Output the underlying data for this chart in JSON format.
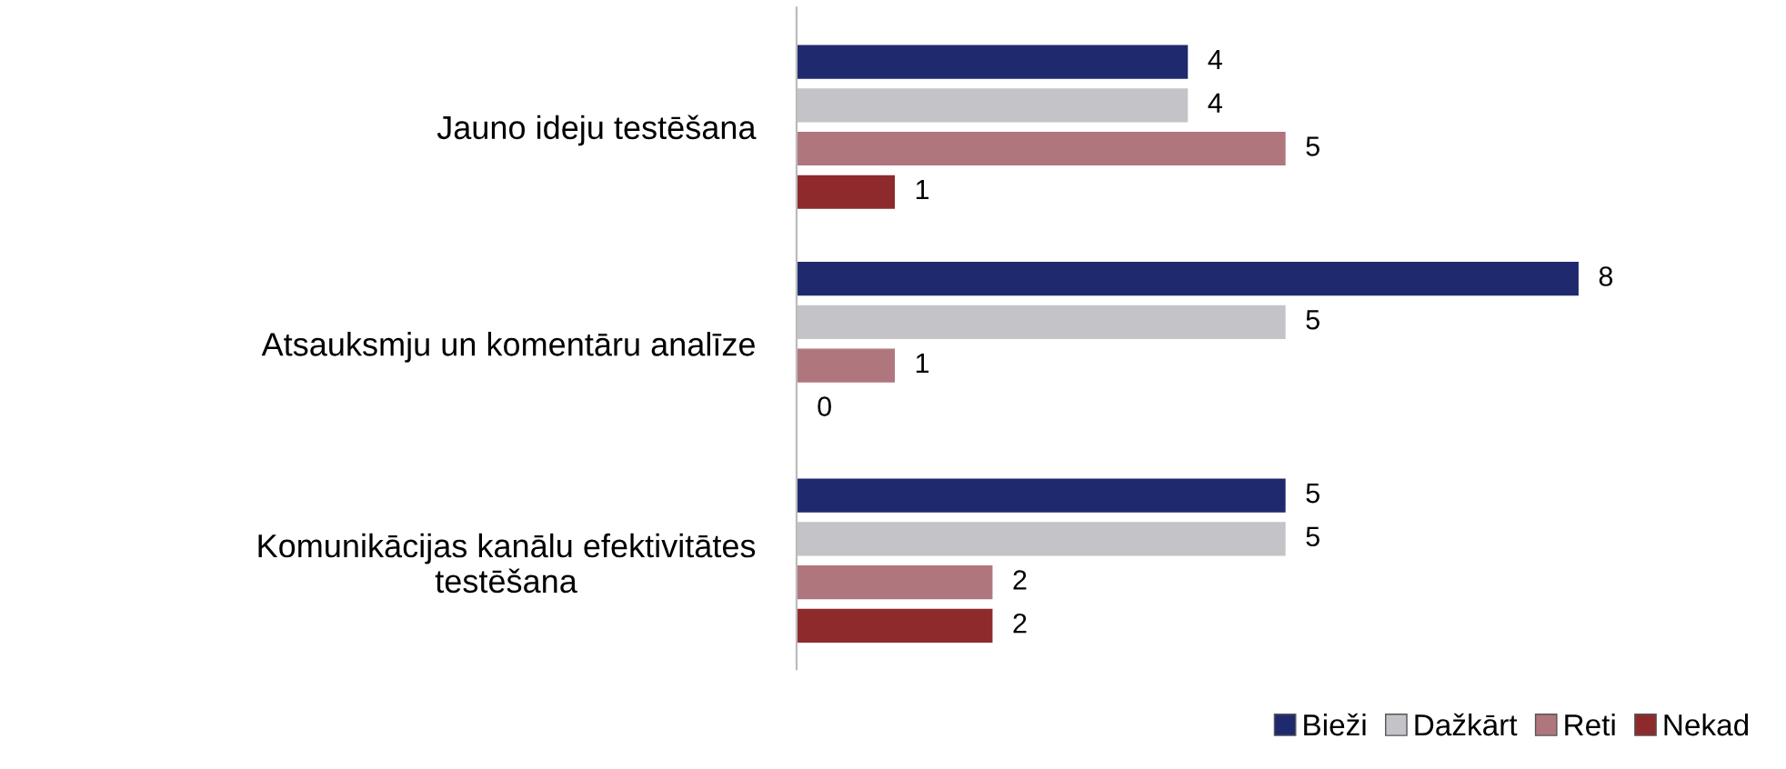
{
  "chart_data": {
    "type": "bar",
    "orientation": "horizontal",
    "categories": [
      "Jauno ideju testēšana",
      "Atsauksmju un komentāru analīze",
      "Komunikācijas kanālu efektivitātes\ntestēšana"
    ],
    "series": [
      {
        "name": "Bieži",
        "color": "#1f2a6e",
        "values": [
          4,
          8,
          5
        ]
      },
      {
        "name": "Dažkārt",
        "color": "#c4c4c8",
        "values": [
          4,
          5,
          5
        ]
      },
      {
        "name": "Reti",
        "color": "#b0767e",
        "values": [
          5,
          1,
          2
        ]
      },
      {
        "name": "Nekad",
        "color": "#8e2a2c",
        "values": [
          1,
          0,
          2
        ]
      }
    ],
    "data_labels": true,
    "legend": "bottom right",
    "grid": false
  }
}
